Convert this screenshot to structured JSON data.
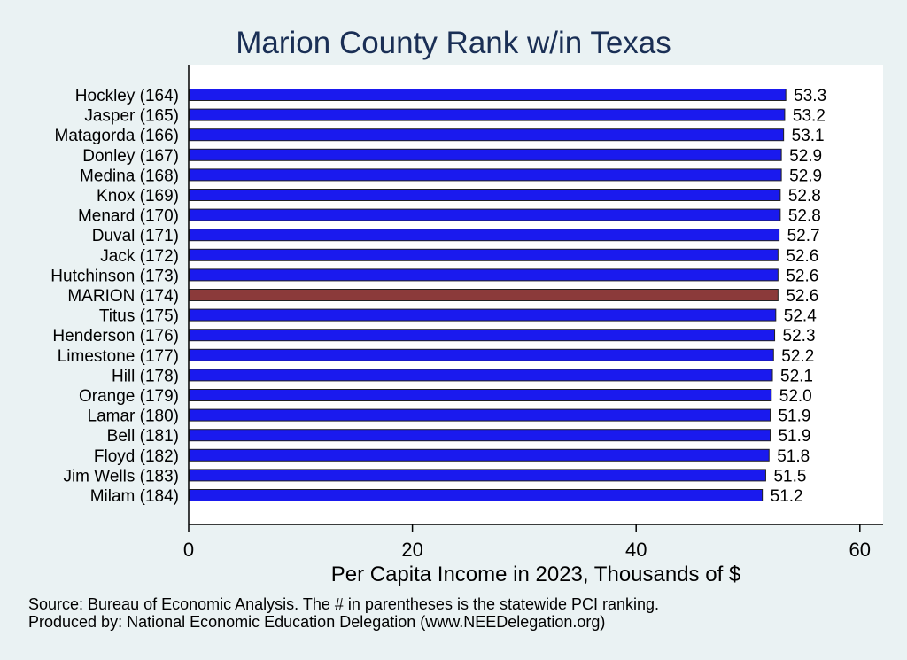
{
  "chart_data": {
    "type": "bar",
    "orientation": "horizontal",
    "title": "Marion County Rank w/in Texas",
    "xlabel": "Per Capita Income in 2023, Thousands of $",
    "xlim": [
      0,
      62
    ],
    "xticks": [
      0,
      20,
      40,
      60
    ],
    "grid": false,
    "categories": [
      "Hockley (164)",
      "Jasper (165)",
      "Matagorda (166)",
      "Donley (167)",
      "Medina (168)",
      "Knox (169)",
      "Menard (170)",
      "Duval (171)",
      "Jack (172)",
      "Hutchinson (173)",
      "MARION (174)",
      "Titus (175)",
      "Henderson (176)",
      "Limestone (177)",
      "Hill (178)",
      "Orange (179)",
      "Lamar (180)",
      "Bell (181)",
      "Floyd (182)",
      "Jim Wells (183)",
      "Milam (184)"
    ],
    "values": [
      53.3,
      53.2,
      53.1,
      52.9,
      52.9,
      52.8,
      52.8,
      52.7,
      52.6,
      52.6,
      52.6,
      52.4,
      52.3,
      52.2,
      52.1,
      52.0,
      51.9,
      51.9,
      51.8,
      51.5,
      51.2
    ],
    "value_labels": [
      "53.3",
      "53.2",
      "53.1",
      "52.9",
      "52.9",
      "52.8",
      "52.8",
      "52.7",
      "52.6",
      "52.6",
      "52.6",
      "52.4",
      "52.3",
      "52.2",
      "52.1",
      "52.0",
      "51.9",
      "51.9",
      "51.8",
      "51.5",
      "51.2"
    ],
    "highlight_index": 10,
    "colors": {
      "bar": "#1a1aee",
      "highlight": "#8b3a3a",
      "title": "#1a2f55",
      "background": "#eaf2f3",
      "plot_background": "#ffffff"
    }
  },
  "notes": {
    "source": "Source: Bureau of Economic Analysis. The # in parentheses is the statewide PCI ranking.",
    "produced_by": "Produced by: National Economic Education Delegation (www.NEEDelegation.org)"
  }
}
